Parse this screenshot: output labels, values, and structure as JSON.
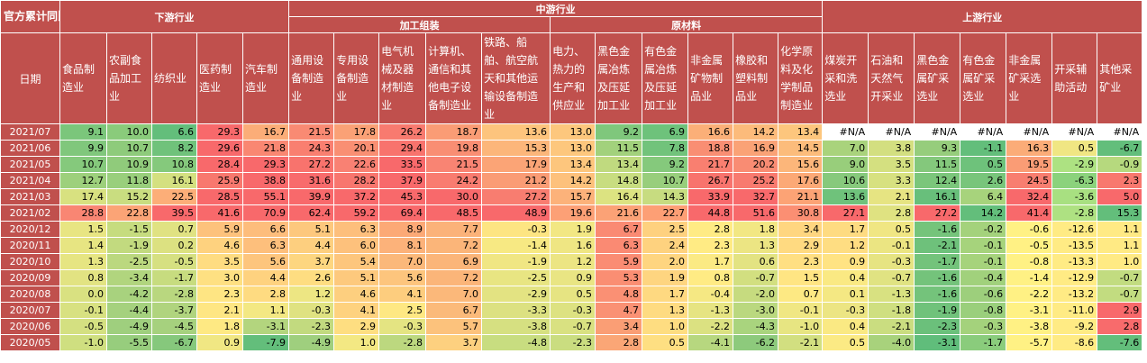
{
  "corner_label": "官方累计同比",
  "date_header": "日期",
  "groups": {
    "downstream": "下游行业",
    "midstream": "中游行业",
    "processing": "加工组装",
    "materials": "原材料",
    "upstream": "上游行业"
  },
  "columns": [
    "食品制造业",
    "农副食品加工业",
    "纺织业",
    "医药制造业",
    "汽车制造业",
    "通用设备制造业",
    "专用设备制造业",
    "电气机械及器材制造业",
    "计算机、通信和其他电子设备制造业",
    "铁路、船舶、航空航天和其他运输设备制造业",
    "电力、热力的生产和供应业",
    "黑色金属冶炼及压延加工业",
    "有色金属冶炼及压延加工业",
    "非金属矿物制品业",
    "橡胶和塑料制品业",
    "化学原料及化学制品制造业",
    "煤炭开采和洗选业",
    "石油和天然气开采业",
    "黑色金属矿采选业",
    "有色金属矿采选业",
    "非金属矿采选业",
    "开采辅助活动",
    "其他采矿业"
  ],
  "rows": [
    {
      "date": "2021/07",
      "values": [
        "9.1",
        "10.0",
        "6.6",
        "29.3",
        "16.7",
        "21.5",
        "17.8",
        "26.2",
        "18.7",
        "13.6",
        "13.0",
        "9.2",
        "6.9",
        "16.6",
        "14.2",
        "13.4",
        "#N/A",
        "#N/A",
        "#N/A",
        "#N/A",
        "#N/A",
        "#N/A",
        "#N/A"
      ],
      "colors": [
        "#7bc67b",
        "#8acb7b",
        "#63be7b",
        "#f8696b",
        "#fbad78",
        "#f98a73",
        "#faa176",
        "#f87a6f",
        "#fa9c75",
        "#fdc47d",
        "#fdc77d",
        "#7fc77c",
        "#6ec27b",
        "#fbaf78",
        "#fcbb7b",
        "#fdc67d",
        "#ffffff",
        "#ffffff",
        "#ffffff",
        "#ffffff",
        "#ffffff",
        "#ffffff",
        "#ffffff"
      ]
    },
    {
      "date": "2021/06",
      "values": [
        "9.9",
        "10.7",
        "8.2",
        "29.6",
        "21.8",
        "24.3",
        "20.1",
        "29.4",
        "19.8",
        "15.3",
        "13.0",
        "11.5",
        "7.8",
        "18.8",
        "16.9",
        "14.5",
        "7.0",
        "3.8",
        "9.3",
        "-1.1",
        "16.3",
        "0.5",
        "-6.7"
      ],
      "colors": [
        "#80c77c",
        "#8ecb7b",
        "#70c27b",
        "#f8696b",
        "#f98772",
        "#f97f70",
        "#f98f73",
        "#f8736d",
        "#f98e73",
        "#fcb67a",
        "#fdc77d",
        "#a2d17c",
        "#71c37b",
        "#f98e73",
        "#faa276",
        "#fcbc7b",
        "#a9d37c",
        "#d3df80",
        "#96cd7c",
        "#63be7b",
        "#fbac78",
        "#f0e683",
        "#63be7b"
      ]
    },
    {
      "date": "2021/05",
      "values": [
        "10.7",
        "10.9",
        "10.8",
        "28.4",
        "29.3",
        "27.2",
        "22.6",
        "33.5",
        "21.5",
        "17.9",
        "13.4",
        "13.4",
        "9.2",
        "21.7",
        "20.2",
        "15.6",
        "9.0",
        "3.5",
        "11.5",
        "0.5",
        "19.5",
        "-2.9",
        "-0.9"
      ],
      "colors": [
        "#85c97c",
        "#90cb7b",
        "#85c97c",
        "#f8696b",
        "#f8696b",
        "#f8736d",
        "#f98173",
        "#f8696b",
        "#f98473",
        "#fba476",
        "#fdc67d",
        "#c0da7f",
        "#85c97c",
        "#f97f70",
        "#f98c73",
        "#fcb67a",
        "#98ce7b",
        "#d4e080",
        "#84c87c",
        "#6ec27b",
        "#fa9c75",
        "#ade282",
        "#b6d97e"
      ]
    },
    {
      "date": "2021/04",
      "values": [
        "12.7",
        "11.8",
        "16.1",
        "25.9",
        "38.8",
        "31.6",
        "28.2",
        "37.9",
        "24.2",
        "21.2",
        "14.2",
        "14.8",
        "10.7",
        "26.7",
        "25.2",
        "17.6",
        "10.6",
        "3.3",
        "12.4",
        "2.6",
        "24.5",
        "-6.3",
        "2.3"
      ],
      "colors": [
        "#9dd07c",
        "#99cf7c",
        "#d4e080",
        "#f8786e",
        "#f8696b",
        "#f86b6c",
        "#f8766e",
        "#f8696b",
        "#f97c70",
        "#fa9c75",
        "#fdc17c",
        "#c8dd80",
        "#98ce7c",
        "#f8736d",
        "#f87a6f",
        "#fca976",
        "#87c97c",
        "#d7e180",
        "#7bc67b",
        "#78c57b",
        "#f87e70",
        "#8bd27c",
        "#f8786e"
      ]
    },
    {
      "date": "2021/03",
      "values": [
        "17.4",
        "15.2",
        "22.5",
        "28.5",
        "55.1",
        "39.9",
        "37.2",
        "45.3",
        "30.0",
        "27.2",
        "15.7",
        "16.4",
        "14.3",
        "33.9",
        "32.7",
        "21.1",
        "13.6",
        "2.1",
        "16.1",
        "6.4",
        "32.4",
        "-3.6",
        "5.0"
      ],
      "colors": [
        "#d8e180",
        "#c9dd80",
        "#fcae78",
        "#f8696b",
        "#f8696b",
        "#f8696b",
        "#f8696b",
        "#f8696b",
        "#f8696b",
        "#f87d70",
        "#fcb27a",
        "#dce381",
        "#c7dc80",
        "#f8696b",
        "#f8696b",
        "#fca375",
        "#6fc27b",
        "#e6e482",
        "#68bf7b",
        "#a7d37c",
        "#f8696b",
        "#a8e081",
        "#f8696b"
      ]
    },
    {
      "date": "2021/02",
      "values": [
        "28.8",
        "22.8",
        "39.5",
        "41.6",
        "70.9",
        "62.4",
        "59.2",
        "69.4",
        "48.5",
        "48.9",
        "19.6",
        "21.6",
        "22.7",
        "44.8",
        "51.6",
        "30.8",
        "27.1",
        "2.8",
        "27.2",
        "14.2",
        "41.4",
        "-2.8",
        "15.3"
      ],
      "colors": [
        "#f98673",
        "#fba476",
        "#f8696b",
        "#f8696b",
        "#f8696b",
        "#f8696b",
        "#f8696b",
        "#f8696b",
        "#f8696b",
        "#f8696b",
        "#fca076",
        "#fba276",
        "#fd9f75",
        "#f8696b",
        "#f8696b",
        "#fb8f73",
        "#f8696b",
        "#dfe281",
        "#f8696b",
        "#63be7b",
        "#f8696b",
        "#aee182",
        "#63be7b"
      ]
    },
    {
      "date": "2020/12",
      "values": [
        "1.5",
        "-1.5",
        "0.7",
        "5.9",
        "6.6",
        "5.1",
        "6.3",
        "8.9",
        "7.7",
        "-0.3",
        "1.9",
        "6.7",
        "2.5",
        "2.8",
        "1.8",
        "3.4",
        "1.7",
        "0.5",
        "-1.6",
        "-0.2",
        "-0.6",
        "-12.6",
        "1.1"
      ],
      "colors": [
        "#e8e582",
        "#c6dc7f",
        "#e0e282",
        "#fdc27c",
        "#fdbd7c",
        "#fdc87d",
        "#fdbf7c",
        "#fca976",
        "#fbb279",
        "#fde582",
        "#f2e783",
        "#fa8a73",
        "#fed17f",
        "#ffeb84",
        "#f2e783",
        "#ffd680",
        "#fedb81",
        "#f0e683",
        "#75c47b",
        "#a4d27c",
        "#fff184",
        "#ffeb84",
        "#ffea84"
      ]
    },
    {
      "date": "2020/11",
      "values": [
        "1.4",
        "-1.9",
        "0.2",
        "4.6",
        "6.3",
        "4.4",
        "6.0",
        "8.1",
        "7.2",
        "-1.4",
        "1.6",
        "6.3",
        "2.4",
        "2.3",
        "1.3",
        "2.9",
        "1.2",
        "-0.1",
        "-2.1",
        "-0.1",
        "-0.5",
        "-13.5",
        "1.1"
      ],
      "colors": [
        "#e7e582",
        "#c2da7f",
        "#dce181",
        "#fed27f",
        "#fdbf7c",
        "#fdcf7f",
        "#fdc17c",
        "#fcb27a",
        "#fbb579",
        "#f7e983",
        "#efe683",
        "#fa8a73",
        "#fed27f",
        "#ffeb84",
        "#ece583",
        "#ffda81",
        "#fedd82",
        "#ebe582",
        "#6ec17b",
        "#a6d37c",
        "#fff184",
        "#ffeb84",
        "#ffea84"
      ]
    },
    {
      "date": "2020/10",
      "values": [
        "1.3",
        "-2.5",
        "-0.5",
        "3.5",
        "5.6",
        "3.7",
        "5.4",
        "7.0",
        "6.9",
        "-1.9",
        "1.2",
        "5.9",
        "2.0",
        "1.7",
        "0.6",
        "2.3",
        "0.9",
        "-0.3",
        "-1.7",
        "-0.1",
        "-0.8",
        "-13.3",
        "1.0"
      ],
      "colors": [
        "#e6e582",
        "#bbd87f",
        "#d6e081",
        "#fedc81",
        "#fdc57d",
        "#fdd680",
        "#fdc67d",
        "#fbb87a",
        "#fbb579",
        "#f0e683",
        "#ece583",
        "#fa8c73",
        "#fed580",
        "#fbea84",
        "#e3e382",
        "#ffdf82",
        "#ffe383",
        "#e6e482",
        "#73c37b",
        "#a6d37c",
        "#fff184",
        "#ffeb84",
        "#ffea84"
      ]
    },
    {
      "date": "2020/09",
      "values": [
        "0.8",
        "-3.4",
        "-1.7",
        "3.0",
        "4.4",
        "2.6",
        "5.1",
        "5.6",
        "7.2",
        "-2.5",
        "0.9",
        "5.3",
        "1.9",
        "0.8",
        "-0.7",
        "1.5",
        "0.4",
        "-0.7",
        "-1.6",
        "-0.4",
        "-1.4",
        "-12.9",
        "-0.7"
      ],
      "colors": [
        "#e2e382",
        "#b1d57e",
        "#c7dc7f",
        "#fee082",
        "#fed27f",
        "#fedd81",
        "#fdc97d",
        "#fdc57d",
        "#fbb579",
        "#e8e582",
        "#e9e583",
        "#fa8e73",
        "#fed580",
        "#ffeb84",
        "#d2df80",
        "#ffe583",
        "#fae983",
        "#e0e382",
        "#74c37b",
        "#a1d17c",
        "#fff184",
        "#ffeb84",
        "#c2dc80"
      ]
    },
    {
      "date": "2020/08",
      "values": [
        "0.0",
        "-4.2",
        "-2.8",
        "2.3",
        "2.8",
        "1.2",
        "4.6",
        "4.1",
        "7.0",
        "-2.9",
        "0.5",
        "4.8",
        "1.7",
        "-0.4",
        "-2.0",
        "0.7",
        "0.1",
        "-1.3",
        "-1.6",
        "-0.6",
        "-2.2",
        "-13.2",
        "-0.7"
      ],
      "colors": [
        "#d9e181",
        "#a8d27e",
        "#b9d77f",
        "#fee583",
        "#fedb81",
        "#ede683",
        "#fdcf7f",
        "#fdcd7e",
        "#fbb87a",
        "#e3e382",
        "#e6e482",
        "#fa9074",
        "#fed981",
        "#f5e883",
        "#c6db7f",
        "#fde983",
        "#f4e883",
        "#d8e181",
        "#74c37b",
        "#9dcf7c",
        "#fff184",
        "#ffeb84",
        "#c2dc80"
      ]
    },
    {
      "date": "2020/07",
      "values": [
        "-0.1",
        "-4.4",
        "-3.7",
        "2.1",
        "1.1",
        "-0.3",
        "4.1",
        "2.5",
        "6.7",
        "-3.3",
        "-0.3",
        "4.7",
        "1.3",
        "-1.3",
        "-3.0",
        "-0.1",
        "-0.3",
        "-1.8",
        "-1.9",
        "-0.8",
        "-3.1",
        "-11.0",
        "2.9"
      ],
      "colors": [
        "#d8e181",
        "#a5d17e",
        "#b0d47e",
        "#fee683",
        "#f3e883",
        "#dfe281",
        "#fed27f",
        "#fee883",
        "#fbba7a",
        "#dce181",
        "#dde281",
        "#fa9174",
        "#fedb81",
        "#e6e482",
        "#bad87f",
        "#f0e783",
        "#ece583",
        "#cfdf80",
        "#70c27b",
        "#9acf7c",
        "#fff184",
        "#ffeb84",
        "#f8696b"
      ]
    },
    {
      "date": "2020/06",
      "values": [
        "-0.5",
        "-4.9",
        "-4.5",
        "1.8",
        "-3.1",
        "-2.3",
        "2.9",
        "-0.3",
        "5.7",
        "-3.8",
        "-0.7",
        "3.4",
        "1.0",
        "-2.2",
        "-4.3",
        "-1.0",
        "0.4",
        "-2.1",
        "-2.3",
        "-0.3",
        "-3.8",
        "-9.2",
        "2.8"
      ],
      "colors": [
        "#d4e081",
        "#9fcf7e",
        "#a6d17e",
        "#fee983",
        "#b3d57e",
        "#c2da7f",
        "#fede81",
        "#e4e482",
        "#fcc27c",
        "#d6e081",
        "#d9e181",
        "#fa9e75",
        "#fedd81",
        "#dbe181",
        "#a9d47e",
        "#e7e582",
        "#fae983",
        "#cadd80",
        "#6bc07b",
        "#a4d27c",
        "#fff184",
        "#ffeb84",
        "#f86b6c"
      ]
    },
    {
      "date": "2020/05",
      "values": [
        "-1.0",
        "-5.5",
        "-6.7",
        "0.9",
        "-7.9",
        "-4.9",
        "1.0",
        "-2.8",
        "3.7",
        "-4.8",
        "-2.3",
        "2.8",
        "0.5",
        "-4.1",
        "-6.2",
        "-2.1",
        "0.5",
        "-4.0",
        "-3.1",
        "-1.7",
        "-5.7",
        "-8.6",
        "-7.6"
      ],
      "colors": [
        "#cfdf80",
        "#97cd7d",
        "#86c87c",
        "#f0e783",
        "#63be7b",
        "#9fcf7e",
        "#f3e883",
        "#bcd87f",
        "#fdd07f",
        "#c8dd80",
        "#cadd80",
        "#faa676",
        "#fedf82",
        "#b7d77f",
        "#8dca7c",
        "#d2df80",
        "#fbea84",
        "#a8d27c",
        "#60bd7b",
        "#8acc7c",
        "#fff184",
        "#ffeb84",
        "#63be7b"
      ]
    }
  ]
}
